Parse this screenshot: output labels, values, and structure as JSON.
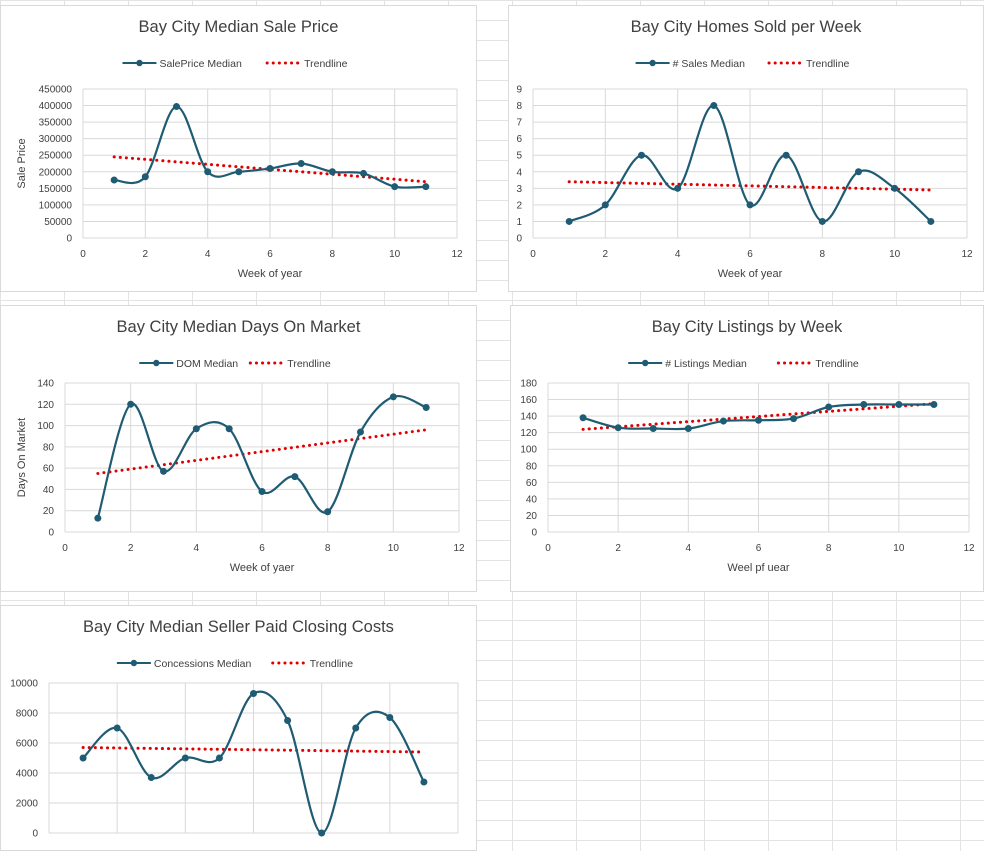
{
  "series_color": "#1f5c73",
  "trend_color": "#e00000",
  "chart_data": [
    {
      "type": "line",
      "title": "Bay City Median Sale Price",
      "series_name": "SalePrice Median",
      "trend_name": "Trendline",
      "xlabel": "Week of year",
      "ylabel": "Sale Price",
      "xlim": [
        0,
        12
      ],
      "ylim": [
        0,
        450000
      ],
      "xticks": [
        0,
        2,
        4,
        6,
        8,
        10,
        12
      ],
      "yticks": [
        0,
        50000,
        100000,
        150000,
        200000,
        250000,
        300000,
        350000,
        400000,
        450000
      ],
      "x": [
        1,
        2,
        3,
        4,
        5,
        6,
        7,
        8,
        9,
        10,
        11
      ],
      "y": [
        175000,
        185000,
        397000,
        200000,
        200000,
        210000,
        225000,
        200000,
        195000,
        155000,
        155000
      ],
      "trend": [
        245000,
        170000
      ]
    },
    {
      "type": "line",
      "title": "Bay City Homes Sold per Week",
      "series_name": "# Sales Median",
      "trend_name": "Trendline",
      "xlabel": "Week of year",
      "ylabel": "",
      "xlim": [
        0,
        12
      ],
      "ylim": [
        0,
        9
      ],
      "xticks": [
        0,
        2,
        4,
        6,
        8,
        10,
        12
      ],
      "yticks": [
        0,
        1,
        2,
        3,
        4,
        5,
        6,
        7,
        8,
        9
      ],
      "x": [
        1,
        2,
        3,
        4,
        5,
        6,
        7,
        8,
        9,
        10,
        11
      ],
      "y": [
        1,
        2,
        5,
        3,
        8,
        2,
        5,
        1,
        4,
        3,
        1
      ],
      "trend": [
        3.4,
        2.9
      ]
    },
    {
      "type": "line",
      "title": "Bay City Median Days On Market",
      "series_name": "DOM Median",
      "trend_name": "Trendline",
      "xlabel": "Week of yaer",
      "ylabel": "Days On Market",
      "xlim": [
        0,
        12
      ],
      "ylim": [
        0,
        140
      ],
      "xticks": [
        0,
        2,
        4,
        6,
        8,
        10,
        12
      ],
      "yticks": [
        0,
        20,
        40,
        60,
        80,
        100,
        120,
        140
      ],
      "x": [
        1,
        2,
        3,
        4,
        5,
        6,
        7,
        8,
        9,
        10,
        11
      ],
      "y": [
        13,
        120,
        57,
        97,
        97,
        38,
        52,
        19,
        94,
        127,
        117
      ],
      "trend": [
        55,
        96
      ]
    },
    {
      "type": "line",
      "title": "Bay City Listings by Week",
      "series_name": "# Listings Median",
      "trend_name": "Trendline",
      "xlabel": "Weel pf uear",
      "ylabel": "",
      "xlim": [
        0,
        12
      ],
      "ylim": [
        0,
        180
      ],
      "xticks": [
        0,
        2,
        4,
        6,
        8,
        10,
        12
      ],
      "yticks": [
        0,
        20,
        40,
        60,
        80,
        100,
        120,
        140,
        160,
        180
      ],
      "x": [
        1,
        2,
        3,
        4,
        5,
        6,
        7,
        8,
        9,
        10,
        11
      ],
      "y": [
        138,
        126,
        125,
        125,
        134,
        135,
        137,
        151,
        154,
        154,
        154
      ],
      "trend": [
        124,
        155
      ]
    },
    {
      "type": "line",
      "title": "Bay City Median Seller Paid Closing Costs",
      "series_name": "Concessions Median",
      "trend_name": "Trendline",
      "xlabel": "",
      "ylabel": "",
      "xlim": [
        0,
        12
      ],
      "ylim": [
        0,
        10000
      ],
      "xticks": [],
      "yticks": [
        0,
        2000,
        4000,
        6000,
        8000,
        10000
      ],
      "x": [
        1,
        2,
        3,
        4,
        5,
        6,
        7,
        8,
        9,
        10,
        11
      ],
      "y": [
        5000,
        7000,
        3700,
        5000,
        5000,
        9300,
        7500,
        0,
        7000,
        7700,
        3400
      ],
      "trend": [
        5700,
        5400
      ]
    }
  ]
}
